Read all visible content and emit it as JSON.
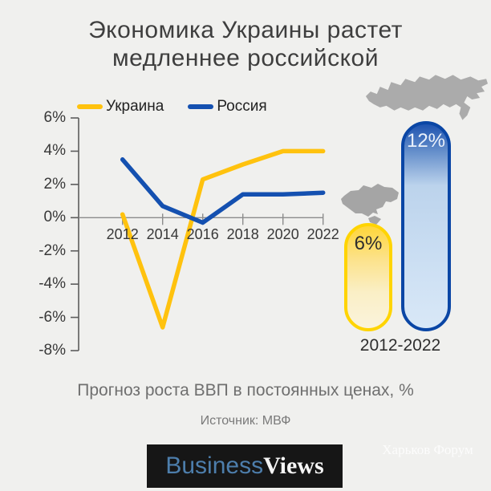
{
  "title": {
    "line1": "Экономика Украины растет",
    "line2": "медленнее российской"
  },
  "legend": [
    {
      "label": "Украина",
      "color": "#FFC20E"
    },
    {
      "label": "Россия",
      "color": "#1450B0"
    }
  ],
  "chart_data": {
    "type": "line",
    "x": [
      2012,
      2014,
      2016,
      2018,
      2020,
      2022
    ],
    "x_tick_labels": [
      "2012",
      "2014",
      "2016",
      "2018",
      "2020",
      "2022"
    ],
    "series": [
      {
        "name": "Украина",
        "color": "#FFC20E",
        "values": [
          0.2,
          -6.6,
          2.3,
          3.2,
          4.0,
          4.0
        ]
      },
      {
        "name": "Россия",
        "color": "#1450B0",
        "values": [
          3.5,
          0.7,
          -0.3,
          1.4,
          1.4,
          1.5
        ]
      }
    ],
    "y_ticks": [
      {
        "value": 6,
        "label": "6%"
      },
      {
        "value": 4,
        "label": "4%"
      },
      {
        "value": 2,
        "label": "2%"
      },
      {
        "value": 0,
        "label": "0%"
      },
      {
        "value": -2,
        "label": "-2%"
      },
      {
        "value": -4,
        "label": "-4%"
      },
      {
        "value": -6,
        "label": "-6%"
      },
      {
        "value": -8,
        "label": "-8%"
      }
    ],
    "ylim": [
      -8,
      6
    ],
    "grid": false,
    "legend_position": "top"
  },
  "comparison": {
    "ukraine_total": "6%",
    "russia_total": "12%",
    "period": "2012-2022",
    "ukraine_pill_color": "#FFD400",
    "russia_pill_color": "#0A46A5",
    "map_color": "#A9A9A9"
  },
  "subtitle": "Прогноз роста ВВП в постоянных ценах, %",
  "source": "Источник: МВФ",
  "logo": {
    "part1": "Business",
    "part2": "Views"
  },
  "watermark": "Харьков Форум",
  "icons": {
    "russia_map": "russia-map-silhouette",
    "ukraine_map": "ukraine-map-silhouette"
  }
}
